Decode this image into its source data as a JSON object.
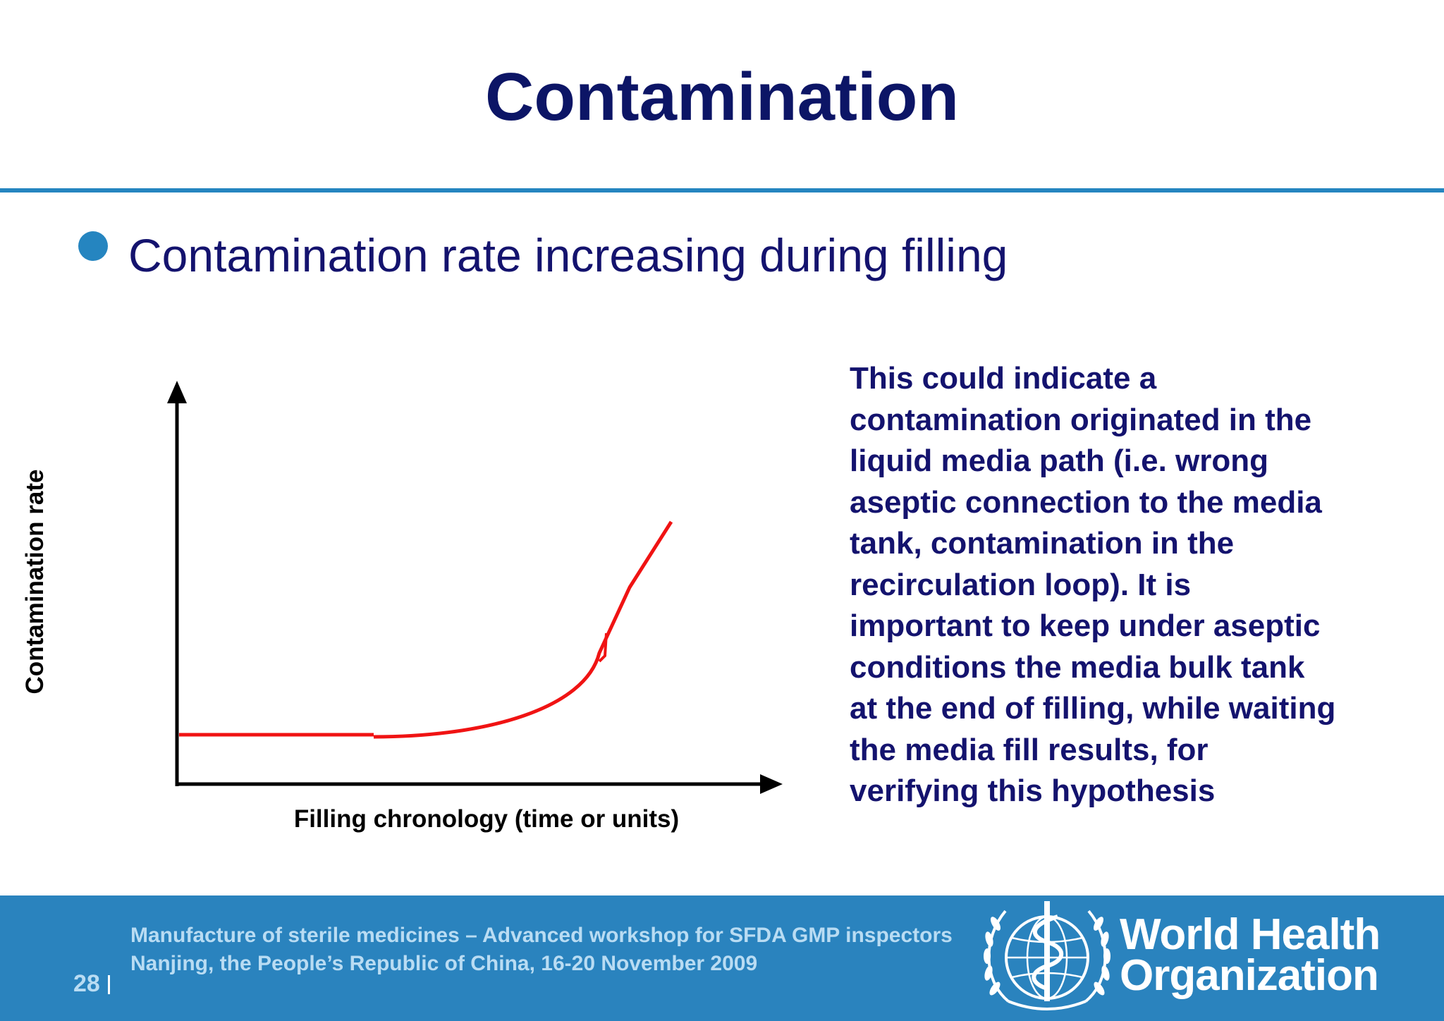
{
  "colors": {
    "title": "#0c1566",
    "text_navy": "#14136e",
    "accent_blue": "#2585c0",
    "footer_bg": "#2a83be",
    "footer_text": "#b9dcf3",
    "curve_red": "#f01313",
    "axis_black": "#000000"
  },
  "slide": {
    "title": "Contamination",
    "bullet": "Contamination rate increasing during filling"
  },
  "diagram": {
    "y_axis_label": "Contamination rate",
    "x_axis_label": "Filling chronology (time or units)"
  },
  "explanation": {
    "lines": [
      "This could indicate a",
      "contamination originated in the",
      "liquid media path (i.e. wrong",
      "aseptic connection to the media",
      "tank, contamination in the",
      "recirculation loop). It is",
      "important to keep under aseptic",
      "conditions the media bulk tank",
      "at the end of filling, while waiting",
      "the media fill results, for",
      "verifying this hypothesis"
    ]
  },
  "footer": {
    "line_1": "Manufacture of sterile medicines – Advanced workshop for SFDA GMP inspectors",
    "line_2": "Nanjing, the People’s Republic of China, 16-20 November 2009",
    "page_number": "28",
    "org_name_line_1": "World Health",
    "org_name_line_2": "Organization",
    "logo_icon": "who-emblem-icon"
  }
}
